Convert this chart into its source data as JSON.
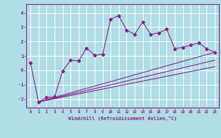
{
  "xlabel": "Windchill (Refroidissement éolien,°C)",
  "background_color": "#b0dde6",
  "grid_color": "#ffffff",
  "line_color": "#882288",
  "xlim": [
    -0.5,
    23.5
  ],
  "ylim": [
    -2.6,
    4.6
  ],
  "yticks": [
    -2,
    -1,
    0,
    1,
    2,
    3,
    4
  ],
  "xticks": [
    0,
    1,
    2,
    3,
    4,
    5,
    6,
    7,
    8,
    9,
    10,
    11,
    12,
    13,
    14,
    15,
    16,
    17,
    18,
    19,
    20,
    21,
    22,
    23
  ],
  "series_main": {
    "x": [
      0,
      1,
      2,
      3,
      4,
      5,
      6,
      7,
      8,
      9,
      10,
      11,
      12,
      13,
      14,
      15,
      16,
      17,
      18,
      19,
      20,
      21,
      22,
      23
    ],
    "y": [
      0.5,
      -2.2,
      -1.9,
      -1.85,
      -0.05,
      0.7,
      0.65,
      1.55,
      1.05,
      1.1,
      3.55,
      3.8,
      2.8,
      2.5,
      3.35,
      2.5,
      2.6,
      2.85,
      1.5,
      1.6,
      1.75,
      1.9,
      1.5,
      1.25
    ]
  },
  "trend_lines": [
    {
      "x0": 1,
      "y0": -2.2,
      "x1": 23,
      "y1": 1.25
    },
    {
      "x0": 1,
      "y0": -2.2,
      "x1": 23,
      "y1": 0.7
    },
    {
      "x0": 1,
      "y0": -2.2,
      "x1": 23,
      "y1": 0.25
    }
  ]
}
